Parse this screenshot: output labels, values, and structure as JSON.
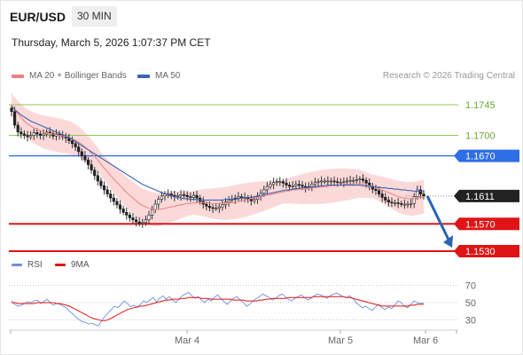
{
  "header": {
    "symbol": "EUR/USD",
    "timeframe": "30 MIN",
    "datetime": "Thursday, March 5, 2026 1:07:37 PM CET"
  },
  "legend": {
    "ma20_label": "MA 20 + Bollinger Bands",
    "ma50_label": "MA 50",
    "research": "Research © 2026 Trading Central"
  },
  "price_levels": {
    "resistance_2": "1.1745",
    "resistance_1": "1.1700",
    "pivot": "1.1670",
    "current": "1.1611",
    "support_1": "1.1570",
    "support_2": "1.1530"
  },
  "rsi_legend": {
    "rsi_label": "RSI",
    "ma9_label": "9MA"
  },
  "rsi_axis": [
    "70",
    "50",
    "30"
  ],
  "time_axis": [
    "Mar 4",
    "Mar 5",
    "Mar 6"
  ],
  "colors": {
    "bollinger_fill": "#f9c9c9",
    "ma20": "#f08080",
    "ma50": "#3c64b4",
    "pivot": "#2e6ee6",
    "support": "#e01414",
    "resistance": "#8cc850",
    "current": "#222222",
    "rsi": "#6f8fe0",
    "rsi_ma": "#e01414",
    "arrow": "#2a62b4"
  },
  "chart_data": {
    "type": "candlestick",
    "price_range": [
      1.153,
      1.1775
    ],
    "candle_closes": [
      1.1735,
      1.1715,
      1.1705,
      1.1702,
      1.17,
      1.1698,
      1.17,
      1.1704,
      1.1702,
      1.17,
      1.1702,
      1.1705,
      1.1703,
      1.1699,
      1.1702,
      1.17,
      1.1698,
      1.1696,
      1.1692,
      1.1688,
      1.1683,
      1.1676,
      1.167,
      1.1664,
      1.1657,
      1.1649,
      1.1641,
      1.1633,
      1.1626,
      1.162,
      1.1614,
      1.1608,
      1.1603,
      1.1598,
      1.1592,
      1.1587,
      1.1583,
      1.1579,
      1.1576,
      1.1573,
      1.1571,
      1.1572,
      1.1576,
      1.1583,
      1.1591,
      1.1599,
      1.1606,
      1.1611,
      1.1614,
      1.1614,
      1.1612,
      1.161,
      1.1611,
      1.1613,
      1.1612,
      1.161,
      1.1609,
      1.1612,
      1.1608,
      1.1603,
      1.1599,
      1.1596,
      1.1594,
      1.1593,
      1.1593,
      1.1595,
      1.1598,
      1.1602,
      1.1605,
      1.1606,
      1.1608,
      1.161,
      1.1609,
      1.1608,
      1.1606,
      1.1604,
      1.1606,
      1.161,
      1.1615,
      1.162,
      1.1625,
      1.1628,
      1.1631,
      1.1632,
      1.1632,
      1.163,
      1.1627,
      1.1625,
      1.1626,
      1.1628,
      1.1627,
      1.1625,
      1.1623,
      1.1625,
      1.1628,
      1.1631,
      1.1632,
      1.1633,
      1.1633,
      1.1633,
      1.1633,
      1.1632,
      1.1631,
      1.1631,
      1.1632,
      1.1633,
      1.1634,
      1.1634,
      1.1635,
      1.1636,
      1.1634,
      1.163,
      1.1625,
      1.1621,
      1.1619,
      1.1614,
      1.1609,
      1.1605,
      1.1602,
      1.1601,
      1.1601,
      1.16,
      1.1599,
      1.1599,
      1.1599,
      1.16,
      1.161,
      1.162,
      1.1614,
      1.1611
    ],
    "ma20": [
      1.1745,
      1.1738,
      1.1732,
      1.1726,
      1.1721,
      1.1717,
      1.1714,
      1.1711,
      1.1709,
      1.1707,
      1.1705,
      1.1704,
      1.1703,
      1.1702,
      1.1701,
      1.17,
      1.1699,
      1.1698,
      1.1697,
      1.1695,
      1.1693,
      1.169,
      1.1687,
      1.1683,
      1.1679,
      1.1674,
      1.1669,
      1.1664,
      1.1658,
      1.1652,
      1.1647,
      1.1641,
      1.1636,
      1.1631,
      1.1626,
      1.1621,
      1.1616,
      1.1612,
      1.1608,
      1.1604,
      1.16,
      1.1597,
      1.1595,
      1.1593,
      1.1592,
      1.1591,
      1.1591,
      1.1592,
      1.1593,
      1.1594,
      1.1595,
      1.1596,
      1.1597,
      1.1598,
      1.1599,
      1.16,
      1.16,
      1.1601,
      1.1601,
      1.1601,
      1.1601,
      1.1601,
      1.16,
      1.16,
      1.16,
      1.16,
      1.16,
      1.16,
      1.1601,
      1.1601,
      1.1602,
      1.1603,
      1.1604,
      1.1605,
      1.1606,
      1.1607,
      1.1608,
      1.1609,
      1.161,
      1.1611,
      1.1612,
      1.1613,
      1.1614,
      1.1615,
      1.1616,
      1.1617,
      1.1618,
      1.1619,
      1.162,
      1.162,
      1.1621,
      1.1621,
      1.1622,
      1.1622,
      1.1623,
      1.1623,
      1.1624,
      1.1624,
      1.1625,
      1.1625,
      1.1626,
      1.1626,
      1.1627,
      1.1627,
      1.1628,
      1.1628,
      1.1628,
      1.1629,
      1.1629,
      1.1629,
      1.1628,
      1.1627,
      1.1626,
      1.1625,
      1.1624,
      1.1622,
      1.162,
      1.1618,
      1.1616,
      1.1614,
      1.1612,
      1.161,
      1.1609,
      1.1608,
      1.1607,
      1.1607,
      1.1607,
      1.1608,
      1.1609,
      1.161
    ],
    "ma50": [
      1.1742,
      1.1738,
      1.1734,
      1.173,
      1.1727,
      1.1724,
      1.1721,
      1.1719,
      1.1717,
      1.1715,
      1.1713,
      1.1711,
      1.1709,
      1.1707,
      1.1705,
      1.1703,
      1.1701,
      1.1699,
      1.1697,
      1.1694,
      1.1691,
      1.1688,
      1.1685,
      1.1682,
      1.1679,
      1.1676,
      1.1673,
      1.167,
      1.1667,
      1.1664,
      1.1661,
      1.1658,
      1.1655,
      1.1652,
      1.1649,
      1.1646,
      1.1643,
      1.164,
      1.1637,
      1.1634,
      1.1631,
      1.1628,
      1.1626,
      1.1624,
      1.1622,
      1.162,
      1.1618,
      1.1616,
      1.1614,
      1.1612,
      1.1611,
      1.161,
      1.1609,
      1.1608,
      1.1607,
      1.1607,
      1.1606,
      1.1606,
      1.1606,
      1.1605,
      1.1605,
      1.1605,
      1.1605,
      1.1605,
      1.1605,
      1.1605,
      1.1605,
      1.1606,
      1.1606,
      1.1606,
      1.1607,
      1.1607,
      1.1608,
      1.1608,
      1.1609,
      1.1609,
      1.161,
      1.1611,
      1.1612,
      1.1613,
      1.1614,
      1.1615,
      1.1616,
      1.1617,
      1.1618,
      1.1619,
      1.162,
      1.162,
      1.1621,
      1.1622,
      1.1622,
      1.1623,
      1.1623,
      1.1624,
      1.1624,
      1.1625,
      1.1625,
      1.1626,
      1.1626,
      1.1627,
      1.1627,
      1.1627,
      1.1627,
      1.1627,
      1.1627,
      1.1627,
      1.1627,
      1.1627,
      1.1627,
      1.1627,
      1.1626,
      1.1626,
      1.1625,
      1.1625,
      1.1624,
      1.1624,
      1.1623,
      1.1623,
      1.1622,
      1.1622,
      1.1621,
      1.1621,
      1.162,
      1.162,
      1.1619,
      1.1619,
      1.1618,
      1.1618,
      1.1618,
      1.1617
    ],
    "rsi": [
      52,
      48,
      46,
      47,
      49,
      51,
      50,
      52,
      53,
      49,
      51,
      54,
      50,
      47,
      49,
      48,
      46,
      44,
      40,
      37,
      33,
      30,
      28,
      27,
      25,
      26,
      24,
      23,
      29,
      34,
      38,
      42,
      46,
      44,
      48,
      52,
      49,
      45,
      47,
      44,
      48,
      52,
      50,
      53,
      56,
      51,
      55,
      58,
      54,
      57,
      53,
      50,
      54,
      58,
      60,
      62,
      58,
      55,
      57,
      53,
      50,
      54,
      52,
      56,
      59,
      55,
      51,
      48,
      52,
      55,
      57,
      53,
      50,
      46,
      48,
      52,
      55,
      57,
      60,
      58,
      56,
      53,
      55,
      58,
      60,
      57,
      54,
      52,
      55,
      57,
      59,
      56,
      53,
      55,
      58,
      60,
      59,
      57,
      55,
      58,
      60,
      61,
      59,
      57,
      56,
      58,
      55,
      50,
      47,
      44,
      46,
      43,
      41,
      45,
      48,
      44,
      42,
      45,
      43,
      47,
      52,
      50,
      46,
      44,
      48,
      52,
      50,
      49,
      50
    ],
    "rsi_ma": [
      50,
      50,
      49,
      49,
      49,
      49,
      49,
      49,
      50,
      50,
      50,
      50,
      50,
      50,
      49,
      49,
      48,
      47,
      46,
      44,
      42,
      40,
      38,
      36,
      34,
      32,
      31,
      30,
      29,
      29,
      30,
      32,
      34,
      36,
      38,
      40,
      42,
      43,
      44,
      45,
      46,
      46,
      47,
      48,
      49,
      50,
      51,
      52,
      53,
      53,
      54,
      54,
      54,
      55,
      55,
      56,
      56,
      56,
      56,
      55,
      55,
      55,
      54,
      54,
      54,
      54,
      54,
      54,
      54,
      53,
      53,
      53,
      53,
      52,
      52,
      52,
      52,
      53,
      53,
      54,
      54,
      55,
      55,
      55,
      55,
      55,
      56,
      56,
      56,
      56,
      56,
      56,
      56,
      56,
      57,
      57,
      57,
      57,
      57,
      57,
      57,
      57,
      57,
      57,
      56,
      56,
      55,
      54,
      53,
      52,
      51,
      50,
      49,
      48,
      47,
      46,
      46,
      46,
      46,
      46,
      46,
      46,
      46,
      46,
      47,
      47,
      48,
      48,
      48
    ],
    "rsi_range": [
      20,
      80
    ],
    "levels": {
      "resistance": [
        1.1745,
        1.17
      ],
      "pivot": 1.167,
      "support": [
        1.157,
        1.153
      ],
      "current": 1.1611
    }
  }
}
